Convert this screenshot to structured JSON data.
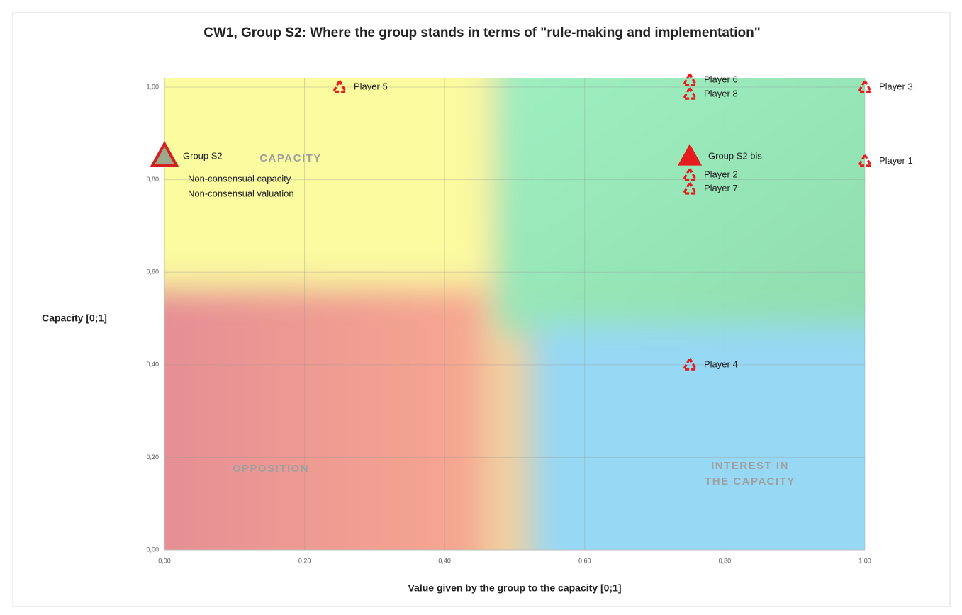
{
  "chart_data": {
    "type": "scatter",
    "title": "CW1, Group S2: Where the group stands in terms of \"rule-making and implementation\"",
    "xlabel": "Value given by the group to  the capacity [0;1]",
    "ylabel": "Capacity [0;1]",
    "xlim": [
      0,
      1
    ],
    "ylim": [
      0,
      1.02
    ],
    "xticks": [
      {
        "value": 0,
        "label": "0,00"
      },
      {
        "value": 0.2,
        "label": "0,20"
      },
      {
        "value": 0.4,
        "label": "0,40"
      },
      {
        "value": 0.6,
        "label": "0,60"
      },
      {
        "value": 0.8,
        "label": "0,80"
      },
      {
        "value": 1,
        "label": "1,00"
      }
    ],
    "yticks": [
      {
        "value": 0,
        "label": "0,00"
      },
      {
        "value": 0.2,
        "label": "0,20"
      },
      {
        "value": 0.4,
        "label": "0,40"
      },
      {
        "value": 0.6,
        "label": "0,60"
      },
      {
        "value": 0.8,
        "label": "0,80"
      },
      {
        "value": 1,
        "label": "1,00"
      }
    ],
    "grid": true,
    "color": "#e41e1e",
    "points": [
      {
        "label": "Player 5",
        "x": 0.25,
        "y": 1.0,
        "marker": "dashed"
      },
      {
        "label": "Player 6",
        "x": 0.75,
        "y": 1.015,
        "marker": "dashed"
      },
      {
        "label": "Player 8",
        "x": 0.75,
        "y": 0.985,
        "marker": "dashed"
      },
      {
        "label": "Player 3",
        "x": 1.0,
        "y": 1.0,
        "marker": "dashed"
      },
      {
        "label": "Group S2",
        "x": 0.0,
        "y": 0.85,
        "marker": "outline"
      },
      {
        "label": "Group S2 bis",
        "x": 0.75,
        "y": 0.85,
        "marker": "filled"
      },
      {
        "label": "Player 1",
        "x": 1.0,
        "y": 0.84,
        "marker": "dashed"
      },
      {
        "label": "Player 2",
        "x": 0.75,
        "y": 0.81,
        "marker": "dashed"
      },
      {
        "label": "Player 7",
        "x": 0.75,
        "y": 0.78,
        "marker": "dashed"
      },
      {
        "label": "Player 4",
        "x": 0.75,
        "y": 0.4,
        "marker": "dashed"
      }
    ],
    "annotations": [
      "Non-consensual capacity",
      "Non-consensual valuation"
    ],
    "quadrant_labels": [
      [
        "CAPACITY"
      ],
      [
        "OPPOSITION"
      ],
      [
        "INTEREST IN",
        "THE CAPACITY"
      ]
    ]
  }
}
